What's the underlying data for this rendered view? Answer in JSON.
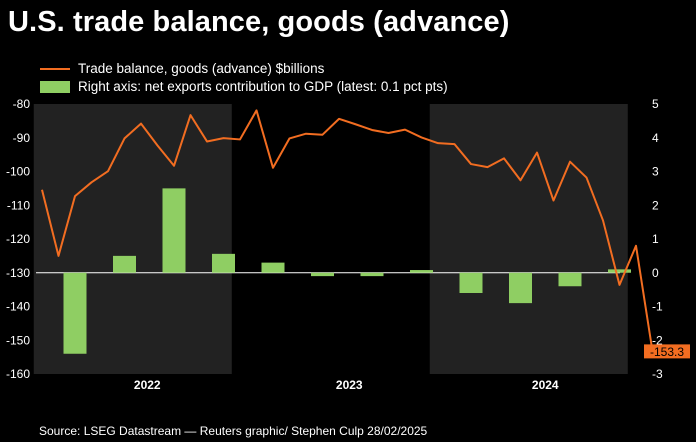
{
  "title": "U.S. trade balance, goods (advance)",
  "legend": {
    "line_label": "Trade balance, goods (advance) $billions",
    "bar_label": "Right axis: net exports contribution to GDP (latest: 0.1 pct pts)"
  },
  "source": "Source: LSEG Datastream — Reuters graphic/ Stephen Culp  28/02/2025",
  "colors": {
    "line": "#f26d21",
    "bar": "#8fce63",
    "shade": "#222222",
    "background": "#000000"
  },
  "chart_data": {
    "type": "line",
    "left_axis": {
      "ylim": [
        -160,
        -80
      ],
      "ticks": [
        -80,
        -90,
        -100,
        -110,
        -120,
        -130,
        -140,
        -150,
        -160
      ]
    },
    "right_axis": {
      "ylim": [
        -3,
        5
      ],
      "ticks": [
        5,
        4,
        3,
        2,
        1,
        0,
        -1,
        -2,
        -3
      ]
    },
    "x_axis_labels": [
      "2022",
      "2023",
      "2024"
    ],
    "series": [
      {
        "name": "Trade balance, goods (advance) $billions",
        "type": "line",
        "axis": "left",
        "x": [
          "2021-12",
          "2022-01",
          "2022-02",
          "2022-03",
          "2022-04",
          "2022-05",
          "2022-06",
          "2022-07",
          "2022-08",
          "2022-09",
          "2022-10",
          "2022-11",
          "2022-12",
          "2023-01",
          "2023-02",
          "2023-03",
          "2023-04",
          "2023-05",
          "2023-06",
          "2023-07",
          "2023-08",
          "2023-09",
          "2023-10",
          "2023-11",
          "2023-12",
          "2024-01",
          "2024-02",
          "2024-03",
          "2024-04",
          "2024-05",
          "2024-06",
          "2024-07",
          "2024-08",
          "2024-09",
          "2024-10",
          "2024-11",
          "2024-12",
          "2025-01"
        ],
        "values": [
          -105.4,
          -125.0,
          -107.3,
          -103.2,
          -99.9,
          -90.2,
          -85.8,
          -92.3,
          -98.3,
          -83.3,
          -91.1,
          -90.1,
          -90.5,
          -81.9,
          -98.9,
          -90.2,
          -88.8,
          -89.1,
          -84.4,
          -86.0,
          -87.7,
          -88.6,
          -87.6,
          -89.9,
          -91.6,
          -91.9,
          -97.8,
          -98.7,
          -96.1,
          -102.6,
          -94.4,
          -108.6,
          -97.1,
          -101.8,
          -114.5,
          -133.6,
          -122.0,
          -153.3
        ],
        "last_value_label": "-153.3"
      },
      {
        "name": "Right axis: net exports contribution to GDP (latest: 0.1 pct pts)",
        "type": "bar",
        "axis": "right",
        "x": [
          "2022-Q1",
          "2022-Q2",
          "2022-Q3",
          "2022-Q4",
          "2023-Q1",
          "2023-Q2",
          "2023-Q3",
          "2023-Q4",
          "2024-Q1",
          "2024-Q2",
          "2024-Q3",
          "2024-Q4"
        ],
        "values": [
          -2.4,
          0.5,
          2.5,
          0.56,
          0.3,
          -0.1,
          -0.1,
          0.08,
          -0.6,
          -0.9,
          -0.4,
          0.1
        ]
      }
    ]
  }
}
